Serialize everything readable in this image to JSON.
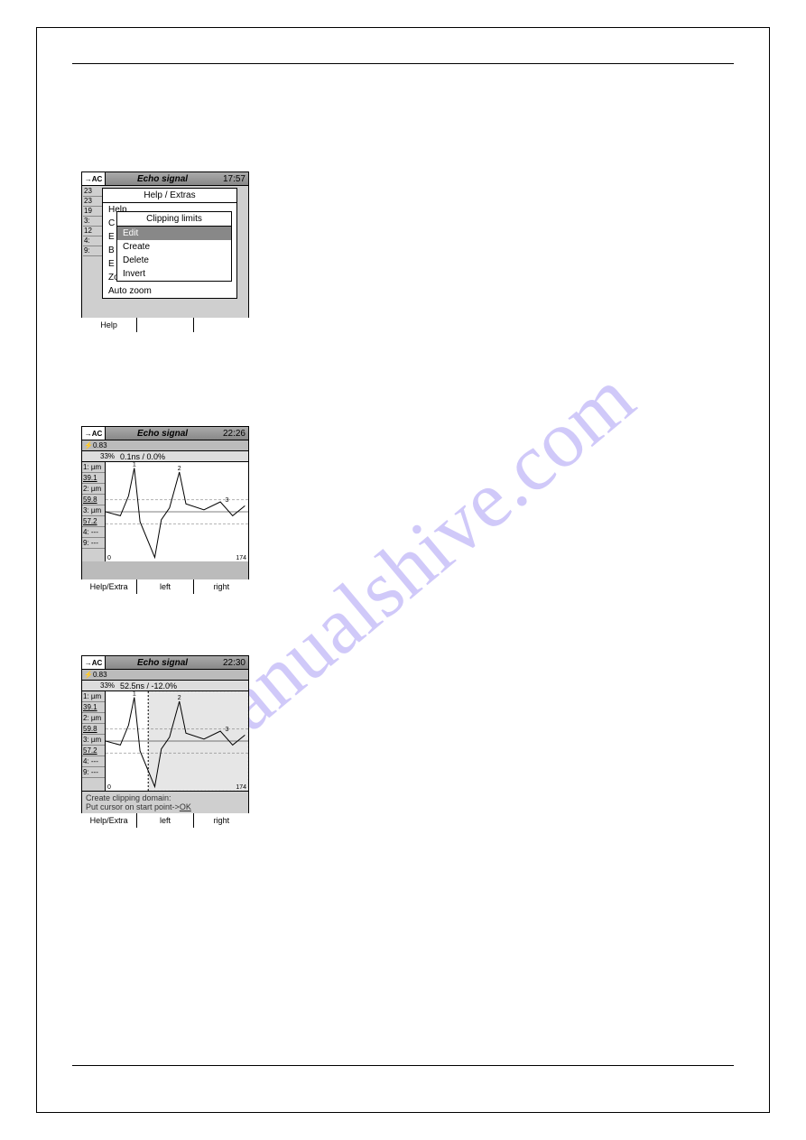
{
  "page": {
    "watermark": "manualshive.com"
  },
  "w1": {
    "ac": "→AC",
    "title": "Echo signal",
    "time": "17:57",
    "side": [
      "23",
      "23",
      "19",
      "3:",
      "12",
      "4:",
      "9:"
    ],
    "menu_outer_title": "Help / Extras",
    "menu_outer_items": [
      "Help",
      "C",
      "E",
      "B",
      "E",
      "Zoom 100%",
      "Auto zoom"
    ],
    "menu_inner_title": "Clipping limits",
    "menu_inner_items": [
      "Edit",
      "Create",
      "Delete",
      "Invert"
    ],
    "footer": [
      "Help",
      "",
      ""
    ]
  },
  "w2": {
    "ac": "→AC",
    "title": "Echo signal",
    "time": "22:26",
    "info1": "⚡0.83",
    "info2_left": "33%",
    "info2": "0.1ns /   0.0%",
    "yvals": [
      "1: µm",
      "39.1",
      "2: µm",
      "59.8",
      "3: µm",
      "57.2",
      "4: ---",
      "9: ---"
    ],
    "chart_labels": {
      "left_top": "2.5%",
      "left_bot": "-3.0%",
      "x_end": "174",
      "x_start": "0"
    },
    "footer": [
      "Help/Extra",
      "left",
      "right"
    ],
    "signal": {
      "ylim": [
        -25,
        25
      ],
      "xlim": [
        0,
        174
      ],
      "grid_color": "#999",
      "line_color": "#000",
      "points": [
        [
          0,
          0
        ],
        [
          18,
          -2
        ],
        [
          28,
          8
        ],
        [
          35,
          22
        ],
        [
          42,
          -5
        ],
        [
          60,
          -23
        ],
        [
          68,
          -4
        ],
        [
          78,
          2
        ],
        [
          90,
          20
        ],
        [
          98,
          4
        ],
        [
          120,
          1
        ],
        [
          140,
          5
        ],
        [
          155,
          -2
        ],
        [
          170,
          3
        ]
      ],
      "dash_y": [
        6,
        -6
      ],
      "markers": [
        [
          35,
          22,
          "1"
        ],
        [
          60,
          -23,
          "1"
        ],
        [
          90,
          20,
          "2"
        ],
        [
          148,
          4,
          "3"
        ]
      ]
    }
  },
  "w3": {
    "ac": "→AC",
    "title": "Echo signal",
    "time": "22:30",
    "info1": "⚡0.83",
    "info2_left": "33%",
    "info2": "52.5ns / -12.0%",
    "yvals": [
      "1: µm",
      "39.1",
      "2: µm",
      "59.8",
      "3: µm",
      "57.2",
      "4: ---",
      "9: ---"
    ],
    "chart_labels": {
      "left_top": "2.5%",
      "left_bot": "-3.0%",
      "x_end": "174",
      "x_start": "0"
    },
    "msg_line1": "Create clipping domain:",
    "msg_line2_a": "Put cursor on start point->",
    "msg_line2_b": "OK",
    "footer": [
      "Help/Extra",
      "left",
      "right"
    ],
    "signal": {
      "ylim": [
        -25,
        25
      ],
      "xlim": [
        0,
        174
      ],
      "grid_color": "#999",
      "line_color": "#000",
      "clip_x": 52,
      "clip_fill": "#dcdcdc",
      "points": [
        [
          0,
          0
        ],
        [
          18,
          -2
        ],
        [
          28,
          8
        ],
        [
          35,
          22
        ],
        [
          42,
          -5
        ],
        [
          60,
          -23
        ],
        [
          68,
          -4
        ],
        [
          78,
          2
        ],
        [
          90,
          20
        ],
        [
          98,
          4
        ],
        [
          120,
          1
        ],
        [
          140,
          5
        ],
        [
          155,
          -2
        ],
        [
          170,
          3
        ]
      ],
      "dash_y": [
        6,
        -6
      ],
      "markers": [
        [
          35,
          22,
          "1"
        ],
        [
          60,
          -23,
          "1"
        ],
        [
          90,
          20,
          "2"
        ],
        [
          148,
          4,
          "3"
        ]
      ]
    }
  }
}
